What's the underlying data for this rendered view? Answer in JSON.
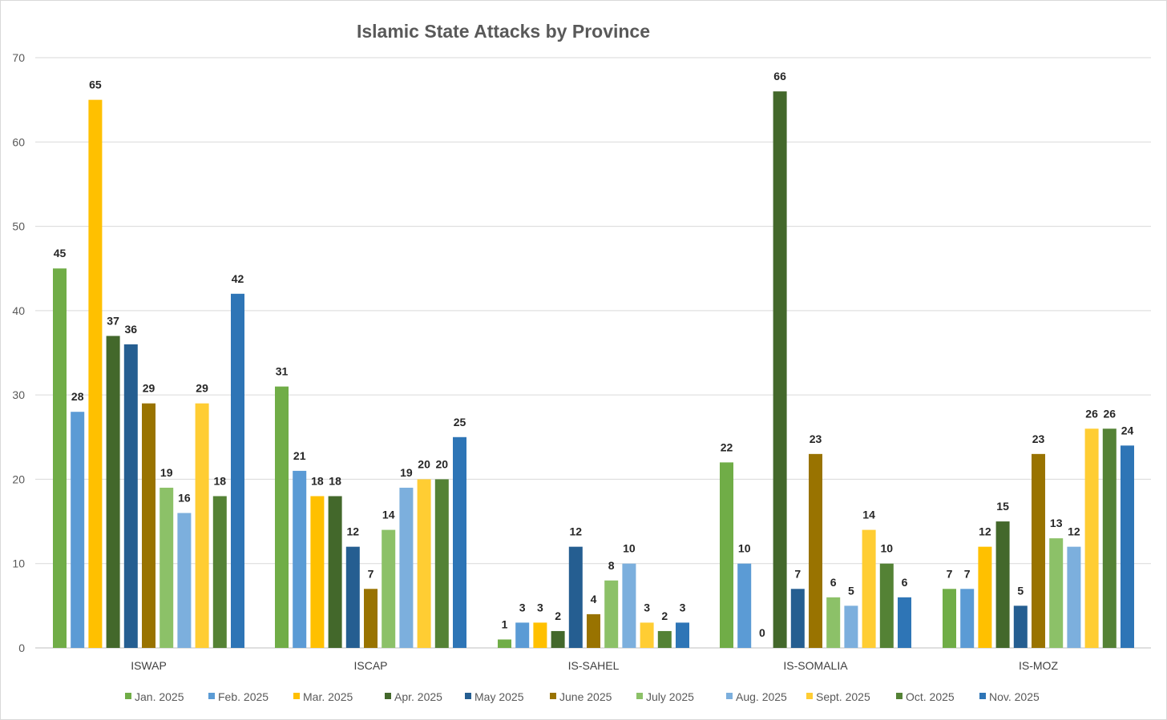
{
  "chart_data": {
    "type": "bar",
    "title": "Islamic State Attacks by Province",
    "xlabel": "",
    "ylabel": "",
    "ylim": [
      0,
      70
    ],
    "yticks": [
      0,
      10,
      20,
      30,
      40,
      50,
      60,
      70
    ],
    "grid": true,
    "legend_position": "bottom",
    "categories": [
      "ISWAP",
      "ISCAP",
      "IS-SAHEL",
      "IS-SOMALIA",
      "IS-MOZ"
    ],
    "series": [
      {
        "name": "Jan. 2025",
        "color": "#70ad47",
        "values": [
          45,
          31,
          1,
          22,
          7
        ]
      },
      {
        "name": "Feb. 2025",
        "color": "#5b9bd5",
        "values": [
          28,
          21,
          3,
          10,
          7
        ]
      },
      {
        "name": "Mar. 2025",
        "color": "#ffc000",
        "values": [
          65,
          18,
          3,
          0,
          12
        ]
      },
      {
        "name": "Apr. 2025",
        "color": "#43682b",
        "values": [
          37,
          18,
          2,
          66,
          15
        ]
      },
      {
        "name": "May 2025",
        "color": "#255e91",
        "values": [
          36,
          12,
          12,
          7,
          5
        ]
      },
      {
        "name": "June 2025",
        "color": "#997300",
        "values": [
          29,
          7,
          4,
          23,
          23
        ]
      },
      {
        "name": "July 2025",
        "color": "#8cc168",
        "values": [
          19,
          14,
          8,
          6,
          13
        ]
      },
      {
        "name": "Aug. 2025",
        "color": "#7cafdd",
        "values": [
          16,
          19,
          10,
          5,
          12
        ]
      },
      {
        "name": "Sept. 2025",
        "color": "#ffcd33",
        "values": [
          29,
          20,
          3,
          14,
          26
        ]
      },
      {
        "name": "Oct. 2025",
        "color": "#548235",
        "values": [
          18,
          20,
          2,
          10,
          26
        ]
      },
      {
        "name": "Nov. 2025",
        "color": "#2e75b6",
        "values": [
          42,
          25,
          3,
          6,
          24
        ]
      }
    ]
  }
}
